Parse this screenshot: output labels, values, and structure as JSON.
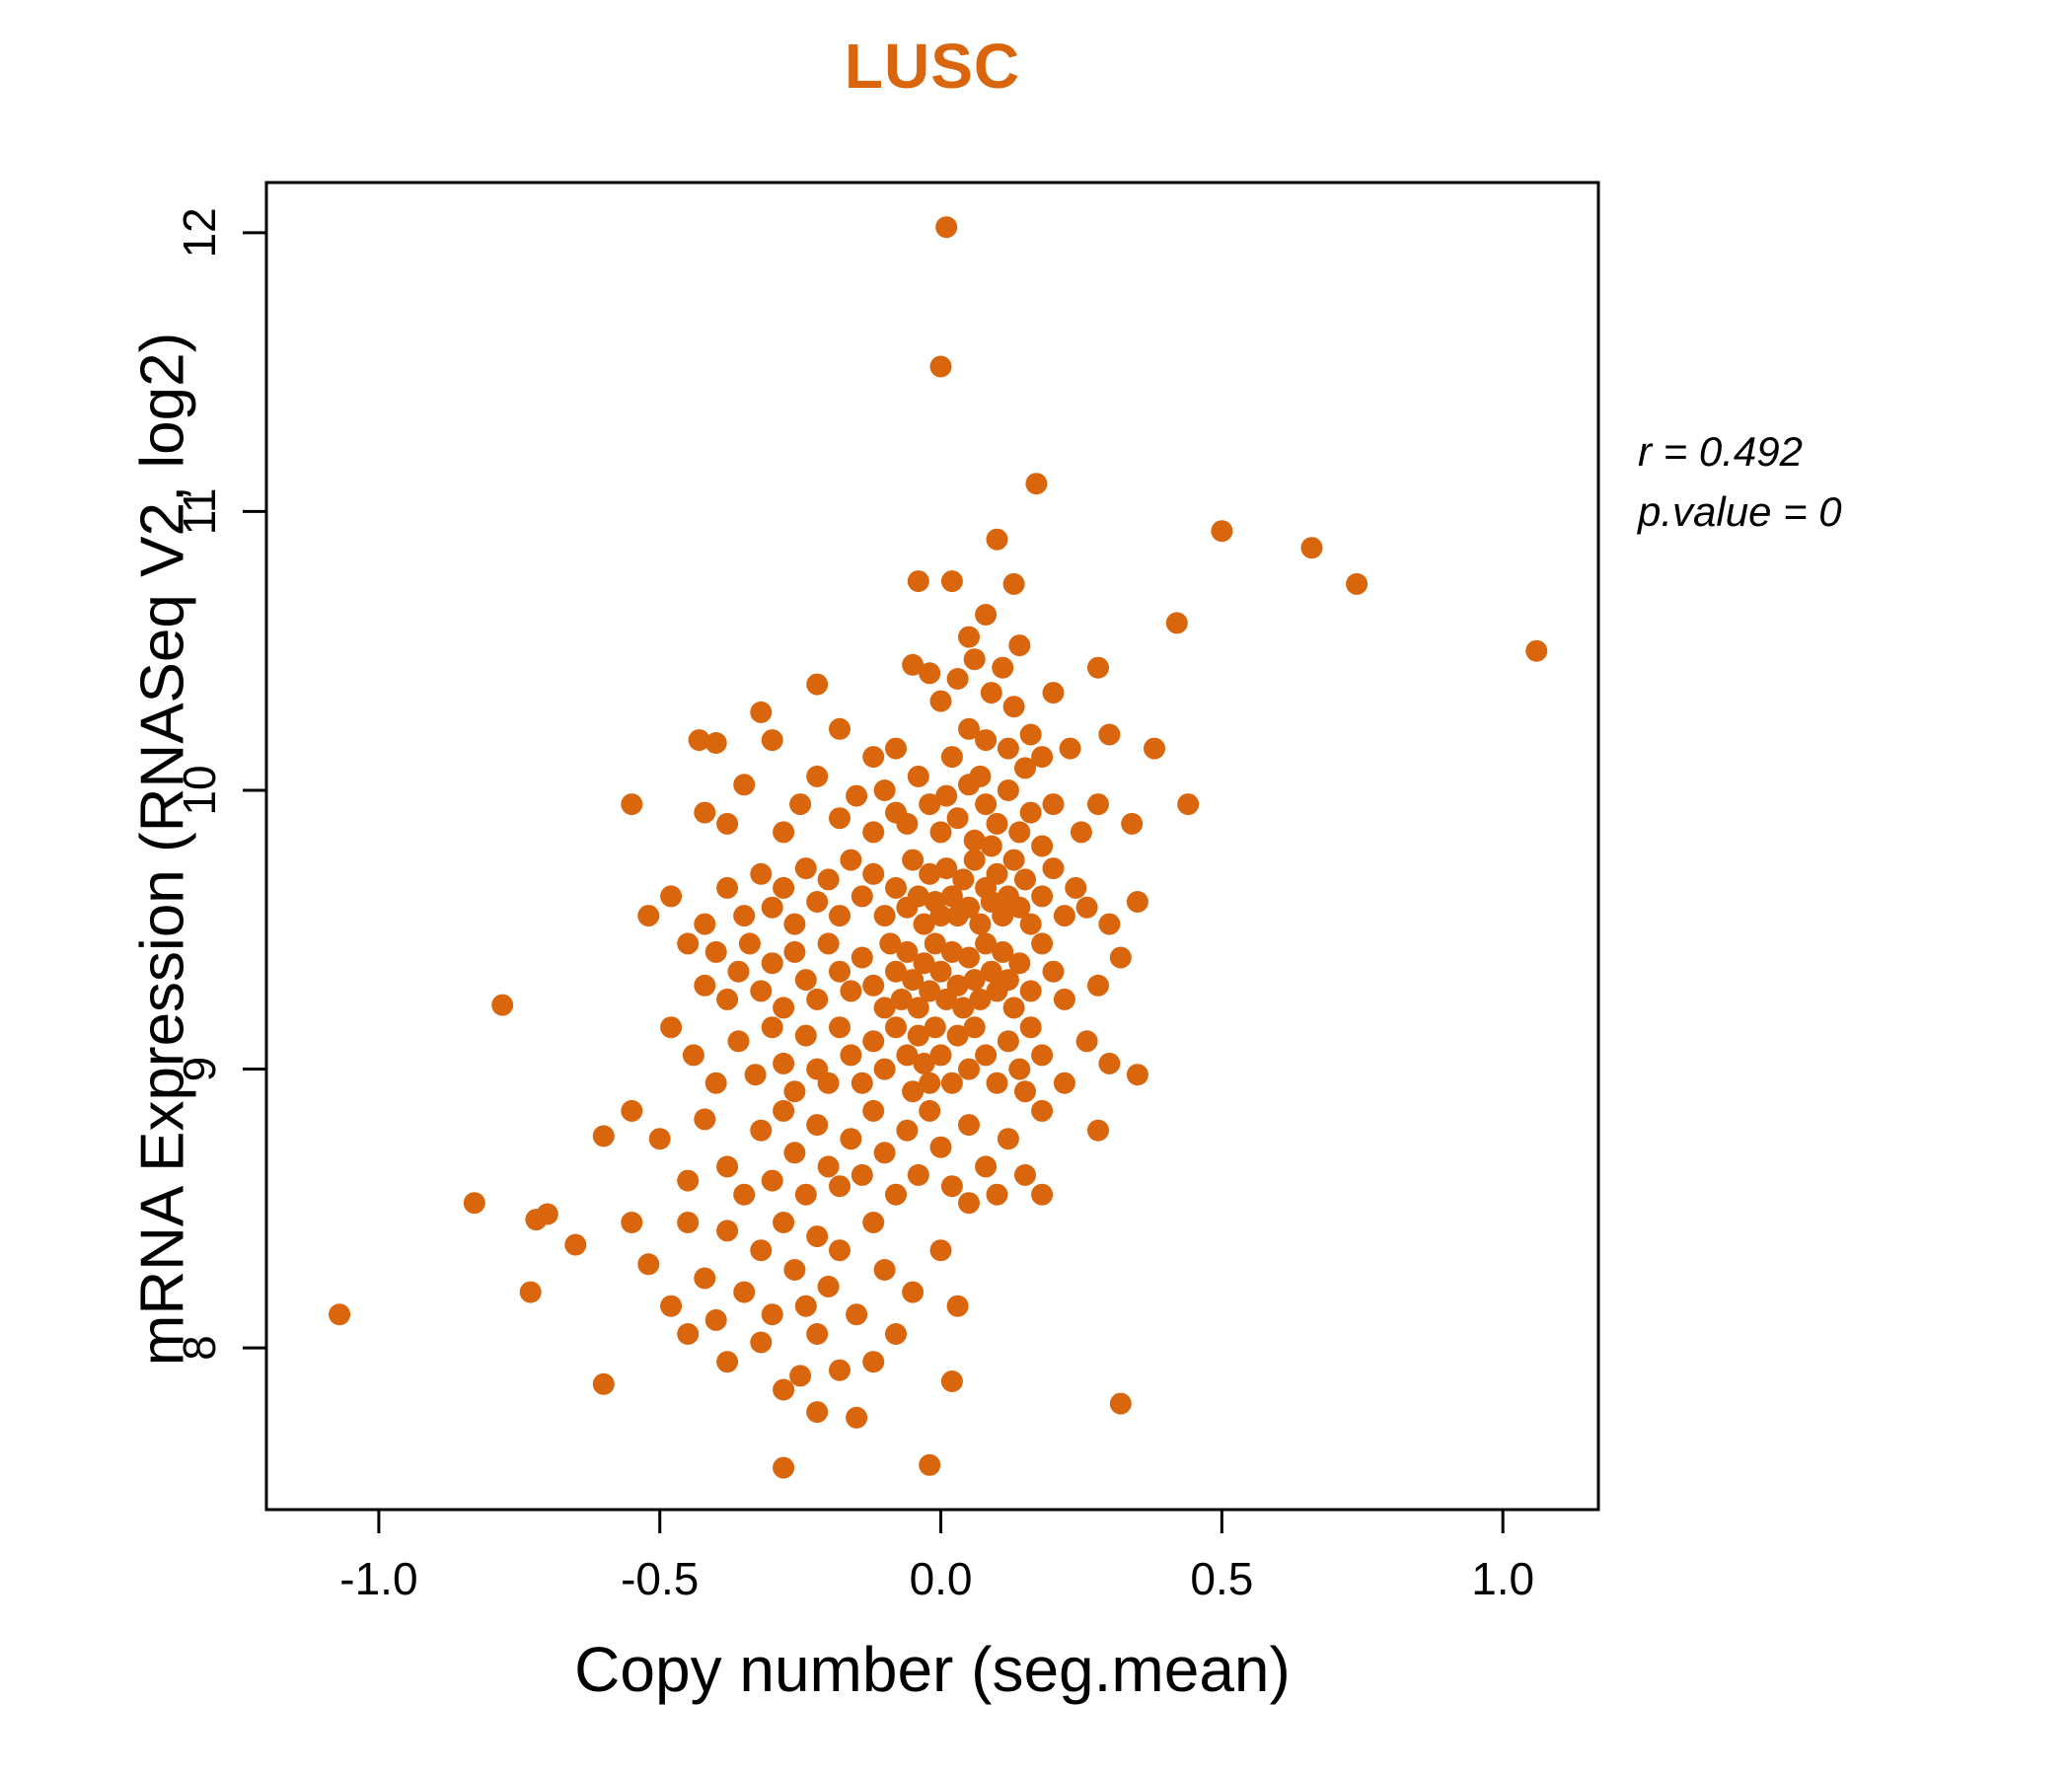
{
  "chart_data": {
    "type": "scatter",
    "title": "LUSC",
    "xlabel": "Copy number (seg.mean)",
    "ylabel": "mRNA Expression (RNASeq V2, log2)",
    "xlim": [
      -1.2,
      1.17
    ],
    "ylim": [
      7.42,
      12.18
    ],
    "x_ticks": [
      -1.0,
      -0.5,
      0.0,
      0.5,
      1.0
    ],
    "y_ticks": [
      8,
      9,
      10,
      11,
      12
    ],
    "grid": false,
    "point_color": "#D9660D",
    "title_color": "#D9660D",
    "annotations": {
      "r": "r = 0.492",
      "p": "p.value = 0"
    },
    "points": [
      [
        0.01,
        12.02
      ],
      [
        0.0,
        11.52
      ],
      [
        0.17,
        11.1
      ],
      [
        0.5,
        10.93
      ],
      [
        0.1,
        10.9
      ],
      [
        0.66,
        10.87
      ],
      [
        0.74,
        10.74
      ],
      [
        1.06,
        10.5
      ],
      [
        0.42,
        10.6
      ],
      [
        -0.04,
        10.75
      ],
      [
        0.02,
        10.75
      ],
      [
        0.13,
        10.74
      ],
      [
        0.08,
        10.63
      ],
      [
        0.05,
        10.55
      ],
      [
        0.14,
        10.52
      ],
      [
        -0.43,
        10.18
      ],
      [
        -0.4,
        10.17
      ],
      [
        -0.32,
        10.28
      ],
      [
        -0.3,
        10.18
      ],
      [
        -0.22,
        10.38
      ],
      [
        -0.18,
        10.22
      ],
      [
        -0.05,
        10.45
      ],
      [
        -0.02,
        10.42
      ],
      [
        0.0,
        10.32
      ],
      [
        0.03,
        10.4
      ],
      [
        0.06,
        10.47
      ],
      [
        0.09,
        10.35
      ],
      [
        0.11,
        10.44
      ],
      [
        0.13,
        10.3
      ],
      [
        0.16,
        10.2
      ],
      [
        0.18,
        10.12
      ],
      [
        0.2,
        10.35
      ],
      [
        0.23,
        10.15
      ],
      [
        0.28,
        10.44
      ],
      [
        0.3,
        10.2
      ],
      [
        0.38,
        10.15
      ],
      [
        0.05,
        10.22
      ],
      [
        0.08,
        10.18
      ],
      [
        0.02,
        10.12
      ],
      [
        -0.08,
        10.15
      ],
      [
        -0.12,
        10.12
      ],
      [
        0.12,
        10.15
      ],
      [
        0.15,
        10.08
      ],
      [
        -0.55,
        9.95
      ],
      [
        -0.42,
        9.92
      ],
      [
        -0.38,
        9.88
      ],
      [
        -0.35,
        10.02
      ],
      [
        -0.28,
        9.85
      ],
      [
        -0.25,
        9.95
      ],
      [
        -0.22,
        10.05
      ],
      [
        -0.18,
        9.9
      ],
      [
        -0.15,
        9.98
      ],
      [
        -0.12,
        9.85
      ],
      [
        -0.1,
        10.0
      ],
      [
        -0.08,
        9.92
      ],
      [
        -0.06,
        9.88
      ],
      [
        -0.04,
        10.05
      ],
      [
        -0.02,
        9.95
      ],
      [
        0.0,
        9.85
      ],
      [
        0.01,
        9.98
      ],
      [
        0.03,
        9.9
      ],
      [
        0.05,
        10.02
      ],
      [
        0.06,
        9.82
      ],
      [
        0.08,
        9.95
      ],
      [
        0.1,
        9.88
      ],
      [
        0.12,
        10.0
      ],
      [
        0.14,
        9.85
      ],
      [
        0.16,
        9.92
      ],
      [
        0.18,
        9.8
      ],
      [
        0.2,
        9.95
      ],
      [
        0.25,
        9.85
      ],
      [
        0.28,
        9.95
      ],
      [
        0.44,
        9.95
      ],
      [
        0.34,
        9.88
      ],
      [
        0.07,
        10.05
      ],
      [
        0.09,
        9.8
      ],
      [
        -0.52,
        9.55
      ],
      [
        -0.48,
        9.62
      ],
      [
        -0.42,
        9.52
      ],
      [
        -0.38,
        9.65
      ],
      [
        -0.35,
        9.55
      ],
      [
        -0.32,
        9.7
      ],
      [
        -0.3,
        9.58
      ],
      [
        -0.28,
        9.65
      ],
      [
        -0.26,
        9.52
      ],
      [
        -0.24,
        9.72
      ],
      [
        -0.22,
        9.6
      ],
      [
        -0.2,
        9.68
      ],
      [
        -0.18,
        9.55
      ],
      [
        -0.16,
        9.75
      ],
      [
        -0.14,
        9.62
      ],
      [
        -0.12,
        9.7
      ],
      [
        -0.1,
        9.55
      ],
      [
        -0.08,
        9.65
      ],
      [
        -0.06,
        9.58
      ],
      [
        -0.05,
        9.75
      ],
      [
        -0.04,
        9.62
      ],
      [
        -0.03,
        9.52
      ],
      [
        -0.02,
        9.7
      ],
      [
        -0.01,
        9.6
      ],
      [
        0.0,
        9.55
      ],
      [
        0.01,
        9.72
      ],
      [
        0.02,
        9.62
      ],
      [
        0.03,
        9.55
      ],
      [
        0.04,
        9.68
      ],
      [
        0.05,
        9.58
      ],
      [
        0.06,
        9.75
      ],
      [
        0.07,
        9.52
      ],
      [
        0.08,
        9.65
      ],
      [
        0.09,
        9.6
      ],
      [
        0.1,
        9.7
      ],
      [
        0.11,
        9.55
      ],
      [
        0.12,
        9.62
      ],
      [
        0.13,
        9.75
      ],
      [
        0.14,
        9.58
      ],
      [
        0.15,
        9.68
      ],
      [
        0.16,
        9.52
      ],
      [
        0.18,
        9.62
      ],
      [
        0.2,
        9.72
      ],
      [
        0.22,
        9.55
      ],
      [
        0.24,
        9.65
      ],
      [
        0.26,
        9.58
      ],
      [
        0.3,
        9.52
      ],
      [
        0.35,
        9.6
      ],
      [
        -0.45,
        9.45
      ],
      [
        -0.42,
        9.3
      ],
      [
        -0.4,
        9.42
      ],
      [
        -0.38,
        9.25
      ],
      [
        -0.36,
        9.35
      ],
      [
        -0.34,
        9.45
      ],
      [
        -0.32,
        9.28
      ],
      [
        -0.3,
        9.38
      ],
      [
        -0.28,
        9.22
      ],
      [
        -0.26,
        9.42
      ],
      [
        -0.24,
        9.32
      ],
      [
        -0.22,
        9.25
      ],
      [
        -0.2,
        9.45
      ],
      [
        -0.18,
        9.35
      ],
      [
        -0.16,
        9.28
      ],
      [
        -0.14,
        9.4
      ],
      [
        -0.12,
        9.3
      ],
      [
        -0.1,
        9.22
      ],
      [
        -0.09,
        9.45
      ],
      [
        -0.08,
        9.35
      ],
      [
        -0.07,
        9.25
      ],
      [
        -0.06,
        9.42
      ],
      [
        -0.05,
        9.32
      ],
      [
        -0.04,
        9.22
      ],
      [
        -0.03,
        9.38
      ],
      [
        -0.02,
        9.28
      ],
      [
        -0.01,
        9.45
      ],
      [
        0.0,
        9.35
      ],
      [
        0.01,
        9.25
      ],
      [
        0.02,
        9.42
      ],
      [
        0.03,
        9.3
      ],
      [
        0.04,
        9.22
      ],
      [
        0.05,
        9.4
      ],
      [
        0.06,
        9.32
      ],
      [
        0.07,
        9.25
      ],
      [
        0.08,
        9.45
      ],
      [
        0.09,
        9.35
      ],
      [
        0.1,
        9.28
      ],
      [
        0.11,
        9.42
      ],
      [
        0.12,
        9.32
      ],
      [
        0.13,
        9.22
      ],
      [
        0.14,
        9.38
      ],
      [
        0.16,
        9.28
      ],
      [
        0.18,
        9.45
      ],
      [
        0.2,
        9.35
      ],
      [
        0.22,
        9.25
      ],
      [
        0.28,
        9.3
      ],
      [
        0.32,
        9.4
      ],
      [
        -0.78,
        9.23
      ],
      [
        -0.48,
        9.15
      ],
      [
        -0.44,
        9.05
      ],
      [
        -0.4,
        8.95
      ],
      [
        -0.36,
        9.1
      ],
      [
        -0.33,
        8.98
      ],
      [
        -0.3,
        9.15
      ],
      [
        -0.28,
        9.02
      ],
      [
        -0.26,
        8.92
      ],
      [
        -0.24,
        9.12
      ],
      [
        -0.22,
        9.0
      ],
      [
        -0.2,
        8.95
      ],
      [
        -0.18,
        9.15
      ],
      [
        -0.16,
        9.05
      ],
      [
        -0.14,
        8.95
      ],
      [
        -0.12,
        9.1
      ],
      [
        -0.1,
        9.0
      ],
      [
        -0.08,
        9.15
      ],
      [
        -0.06,
        9.05
      ],
      [
        -0.05,
        8.92
      ],
      [
        -0.04,
        9.12
      ],
      [
        -0.03,
        9.02
      ],
      [
        -0.02,
        8.95
      ],
      [
        -0.01,
        9.15
      ],
      [
        0.0,
        9.05
      ],
      [
        0.02,
        8.95
      ],
      [
        0.03,
        9.12
      ],
      [
        0.05,
        9.0
      ],
      [
        0.06,
        9.15
      ],
      [
        0.08,
        9.05
      ],
      [
        0.1,
        8.95
      ],
      [
        0.12,
        9.1
      ],
      [
        0.14,
        9.0
      ],
      [
        0.16,
        9.15
      ],
      [
        0.18,
        9.05
      ],
      [
        0.22,
        8.95
      ],
      [
        0.26,
        9.1
      ],
      [
        0.3,
        9.02
      ],
      [
        0.35,
        8.98
      ],
      [
        0.15,
        8.92
      ],
      [
        -0.55,
        8.85
      ],
      [
        -0.5,
        8.75
      ],
      [
        -0.45,
        8.6
      ],
      [
        -0.42,
        8.82
      ],
      [
        -0.38,
        8.65
      ],
      [
        -0.35,
        8.55
      ],
      [
        -0.32,
        8.78
      ],
      [
        -0.3,
        8.6
      ],
      [
        -0.28,
        8.85
      ],
      [
        -0.26,
        8.7
      ],
      [
        -0.24,
        8.55
      ],
      [
        -0.22,
        8.8
      ],
      [
        -0.2,
        8.65
      ],
      [
        -0.18,
        8.58
      ],
      [
        -0.16,
        8.75
      ],
      [
        -0.14,
        8.62
      ],
      [
        -0.12,
        8.85
      ],
      [
        -0.1,
        8.7
      ],
      [
        -0.08,
        8.55
      ],
      [
        -0.06,
        8.78
      ],
      [
        -0.04,
        8.62
      ],
      [
        -0.02,
        8.85
      ],
      [
        0.0,
        8.72
      ],
      [
        0.02,
        8.58
      ],
      [
        0.05,
        8.8
      ],
      [
        0.08,
        8.65
      ],
      [
        0.1,
        8.55
      ],
      [
        0.12,
        8.75
      ],
      [
        0.15,
        8.62
      ],
      [
        0.18,
        8.85
      ],
      [
        0.05,
        8.52
      ],
      [
        0.28,
        8.78
      ],
      [
        -0.6,
        8.76
      ],
      [
        -0.83,
        8.52
      ],
      [
        -0.72,
        8.46
      ],
      [
        -0.7,
        8.48
      ],
      [
        -0.65,
        8.37
      ],
      [
        -0.73,
        8.2
      ],
      [
        -0.55,
        8.45
      ],
      [
        -0.52,
        8.3
      ],
      [
        -0.48,
        8.15
      ],
      [
        -0.45,
        8.45
      ],
      [
        -0.42,
        8.25
      ],
      [
        -0.4,
        8.1
      ],
      [
        -0.38,
        8.42
      ],
      [
        -0.35,
        8.2
      ],
      [
        -0.32,
        8.35
      ],
      [
        -0.3,
        8.12
      ],
      [
        -0.28,
        8.45
      ],
      [
        -0.26,
        8.28
      ],
      [
        -0.24,
        8.15
      ],
      [
        -0.22,
        8.4
      ],
      [
        -0.2,
        8.22
      ],
      [
        -0.18,
        8.35
      ],
      [
        -0.15,
        8.12
      ],
      [
        -0.12,
        8.45
      ],
      [
        -0.1,
        8.28
      ],
      [
        -0.05,
        8.2
      ],
      [
        0.0,
        8.35
      ],
      [
        0.03,
        8.15
      ],
      [
        0.18,
        8.55
      ],
      [
        -1.07,
        8.12
      ],
      [
        -0.6,
        7.87
      ],
      [
        -0.45,
        8.05
      ],
      [
        -0.38,
        7.95
      ],
      [
        -0.32,
        8.02
      ],
      [
        -0.28,
        7.85
      ],
      [
        -0.25,
        7.9
      ],
      [
        -0.22,
        8.05
      ],
      [
        -0.18,
        7.92
      ],
      [
        -0.28,
        7.57
      ],
      [
        -0.22,
        7.77
      ],
      [
        -0.15,
        7.75
      ],
      [
        -0.02,
        7.58
      ],
      [
        0.02,
        7.88
      ],
      [
        0.32,
        7.8
      ],
      [
        -0.12,
        7.95
      ],
      [
        -0.08,
        8.05
      ]
    ]
  }
}
